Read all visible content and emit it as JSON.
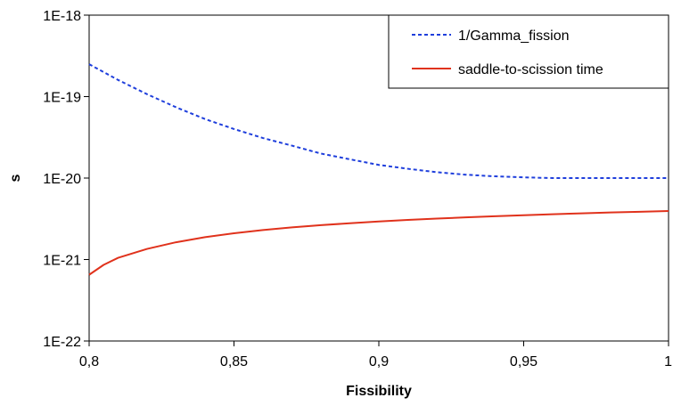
{
  "chart_data": {
    "type": "line",
    "title": "",
    "xlabel": "Fissibility",
    "ylabel": "s",
    "y_scale": "log",
    "xlim": [
      0.8,
      1.0
    ],
    "ylim": [
      1e-22,
      1e-18
    ],
    "grid": false,
    "legend_position": "top-right",
    "x_ticks": [
      {
        "value": 0.8,
        "label": "0,8"
      },
      {
        "value": 0.85,
        "label": "0,85"
      },
      {
        "value": 0.9,
        "label": "0,9"
      },
      {
        "value": 0.95,
        "label": "0,95"
      },
      {
        "value": 1.0,
        "label": "1"
      }
    ],
    "y_ticks": [
      {
        "value": 1e-22,
        "label": "1E-22"
      },
      {
        "value": 1e-21,
        "label": "1E-21"
      },
      {
        "value": 1e-20,
        "label": "1E-20"
      },
      {
        "value": 1e-19,
        "label": "1E-19"
      },
      {
        "value": 1e-18,
        "label": "1E-18"
      }
    ],
    "series": [
      {
        "name": "1/Gamma_fission",
        "color": "#1f3fdc",
        "style": "dotted",
        "points": [
          [
            0.8,
            2.5e-19
          ],
          [
            0.81,
            1.6e-19
          ],
          [
            0.82,
            1.07e-19
          ],
          [
            0.83,
            7.4e-20
          ],
          [
            0.84,
            5.3e-20
          ],
          [
            0.85,
            4e-20
          ],
          [
            0.86,
            3.1e-20
          ],
          [
            0.87,
            2.5e-20
          ],
          [
            0.88,
            2e-20
          ],
          [
            0.89,
            1.7e-20
          ],
          [
            0.9,
            1.45e-20
          ],
          [
            0.91,
            1.3e-20
          ],
          [
            0.92,
            1.18e-20
          ],
          [
            0.93,
            1.1e-20
          ],
          [
            0.94,
            1.05e-20
          ],
          [
            0.95,
            1.02e-20
          ],
          [
            0.96,
            1e-20
          ],
          [
            0.97,
            1e-20
          ],
          [
            0.98,
            1e-20
          ],
          [
            0.99,
            1e-20
          ],
          [
            1.0,
            1e-20
          ]
        ]
      },
      {
        "name": "saddle-to-scission time",
        "color": "#e0321c",
        "style": "solid",
        "points": [
          [
            0.8,
            6.5e-22
          ],
          [
            0.805,
            8.6e-22
          ],
          [
            0.81,
            1.05e-21
          ],
          [
            0.82,
            1.35e-21
          ],
          [
            0.83,
            1.63e-21
          ],
          [
            0.84,
            1.88e-21
          ],
          [
            0.85,
            2.1e-21
          ],
          [
            0.86,
            2.3e-21
          ],
          [
            0.87,
            2.48e-21
          ],
          [
            0.88,
            2.64e-21
          ],
          [
            0.89,
            2.79e-21
          ],
          [
            0.9,
            2.93e-21
          ],
          [
            0.91,
            3.06e-21
          ],
          [
            0.92,
            3.18e-21
          ],
          [
            0.93,
            3.29e-21
          ],
          [
            0.94,
            3.4e-21
          ],
          [
            0.95,
            3.5e-21
          ],
          [
            0.96,
            3.6e-21
          ],
          [
            0.97,
            3.69e-21
          ],
          [
            0.98,
            3.78e-21
          ],
          [
            0.99,
            3.86e-21
          ],
          [
            1.0,
            3.94e-21
          ]
        ]
      }
    ]
  }
}
